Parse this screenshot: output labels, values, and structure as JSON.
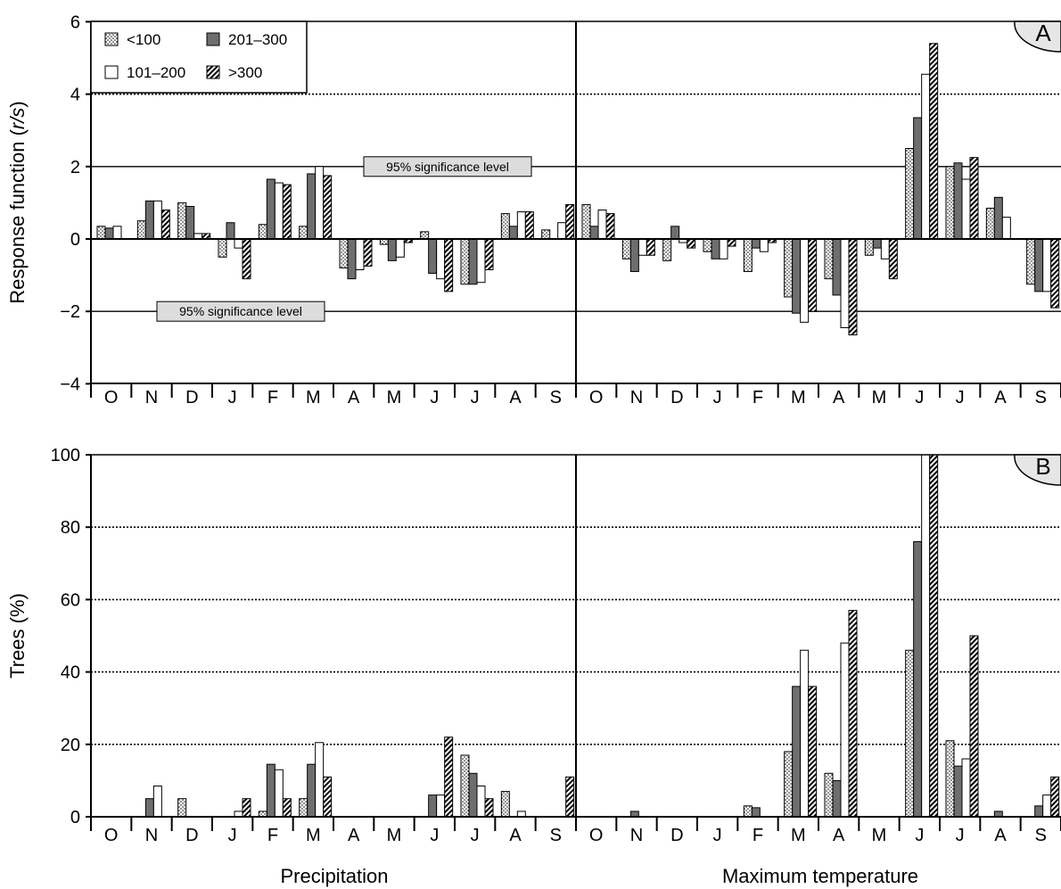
{
  "legend": [
    {
      "label": "<100",
      "pattern": "dots"
    },
    {
      "label": "201–300",
      "pattern": "dark"
    },
    {
      "label": "101–200",
      "pattern": "white"
    },
    {
      "label": ">300",
      "pattern": "hatch"
    }
  ],
  "section_labels": [
    "Precipitation",
    "Maximum temperature"
  ],
  "colors": {
    "dark": "#6e6e6e",
    "line": "#000000",
    "sig_box": "#dcdcdc"
  },
  "chart_data": [
    {
      "type": "bar",
      "panel_label": "A",
      "ylabel": "Response function (r/s)",
      "ylabel_parts": [
        "Response function (",
        "r/s",
        ")"
      ],
      "ylim": [
        -4,
        6
      ],
      "yticks": [
        -4,
        -2,
        0,
        2,
        4,
        6
      ],
      "ytick_labels": [
        "−4",
        "−2",
        "0",
        "2",
        "4",
        "6"
      ],
      "gridlines": [
        {
          "y": 4,
          "style": "dotted"
        },
        {
          "y": 2,
          "style": "solid"
        },
        {
          "y": -2,
          "style": "solid"
        }
      ],
      "annotations": [
        {
          "text": "95% significance level",
          "y": 2
        },
        {
          "text": "95% significance level",
          "y": -2
        }
      ],
      "categories": [
        "O",
        "N",
        "D",
        "J",
        "F",
        "M",
        "A",
        "M",
        "J",
        "J",
        "A",
        "S",
        "O",
        "N",
        "D",
        "J",
        "F",
        "M",
        "A",
        "M",
        "J",
        "J",
        "A",
        "S"
      ],
      "series": [
        {
          "name": "<100",
          "values": [
            0.35,
            0.5,
            1.0,
            -0.5,
            0.4,
            0.35,
            -0.8,
            -0.15,
            0.2,
            -1.25,
            0.7,
            0.25,
            0.95,
            -0.55,
            -0.6,
            -0.35,
            -0.9,
            -1.6,
            -1.1,
            -0.45,
            2.5,
            2.0,
            0.85,
            -1.25
          ]
        },
        {
          "name": "101–200",
          "values": [
            0.3,
            1.05,
            0.9,
            0.45,
            1.65,
            1.8,
            -1.1,
            -0.6,
            -0.95,
            -1.25,
            0.35,
            0.0,
            0.35,
            -0.9,
            0.35,
            -0.55,
            -0.25,
            -2.05,
            -1.55,
            -0.25,
            3.35,
            2.1,
            1.15,
            -1.45
          ]
        },
        {
          "name": "201–300",
          "values": [
            0.35,
            1.05,
            0.15,
            -0.25,
            1.55,
            2.0,
            -0.85,
            -0.5,
            -1.1,
            -1.2,
            0.75,
            0.45,
            0.8,
            -0.45,
            -0.1,
            -0.55,
            -0.35,
            -2.3,
            -2.45,
            -0.55,
            4.55,
            1.65,
            0.6,
            -1.45
          ]
        },
        {
          "name": ">300",
          "values": [
            0.0,
            0.8,
            0.15,
            -1.1,
            1.5,
            1.75,
            -0.75,
            -0.1,
            -1.45,
            -0.85,
            0.75,
            0.95,
            0.7,
            -0.45,
            -0.25,
            -0.2,
            -0.1,
            -2.0,
            -2.65,
            -1.1,
            5.4,
            2.25,
            0.0,
            -1.9
          ]
        }
      ]
    },
    {
      "type": "bar",
      "panel_label": "B",
      "ylabel": "Trees (%)",
      "ylim": [
        0,
        100
      ],
      "yticks": [
        0,
        20,
        40,
        60,
        80,
        100
      ],
      "ytick_labels": [
        "0",
        "20",
        "40",
        "60",
        "80",
        "100"
      ],
      "gridlines": [
        {
          "y": 20,
          "style": "dotted"
        },
        {
          "y": 40,
          "style": "dotted"
        },
        {
          "y": 60,
          "style": "dotted"
        },
        {
          "y": 80,
          "style": "dotted"
        }
      ],
      "categories": [
        "O",
        "N",
        "D",
        "J",
        "F",
        "M",
        "A",
        "M",
        "J",
        "J",
        "A",
        "S",
        "O",
        "N",
        "D",
        "J",
        "F",
        "M",
        "A",
        "M",
        "J",
        "J",
        "A",
        "S"
      ],
      "series": [
        {
          "name": "<100",
          "values": [
            0,
            0,
            5,
            0,
            1.5,
            5,
            0,
            0,
            0,
            17,
            7,
            0,
            0,
            0,
            0,
            0,
            3,
            18,
            12,
            0,
            46,
            21,
            0,
            0
          ]
        },
        {
          "name": "101–200",
          "values": [
            0,
            5,
            0,
            0,
            14.5,
            14.5,
            0,
            0,
            6,
            12,
            0,
            0,
            0,
            1.5,
            0,
            0,
            2.5,
            36,
            10,
            0,
            76,
            14,
            1.5,
            3
          ]
        },
        {
          "name": "201–300",
          "values": [
            0,
            8.5,
            0,
            1.5,
            13,
            20.5,
            0,
            0,
            6,
            8.5,
            1.5,
            0,
            0,
            0,
            0,
            0,
            0,
            46,
            48,
            0,
            100,
            16,
            0,
            6
          ]
        },
        {
          "name": ">300",
          "values": [
            0,
            0,
            0,
            5,
            5,
            11,
            0,
            0,
            22,
            5,
            0,
            11,
            0,
            0,
            0,
            0,
            0,
            36,
            57,
            0,
            100,
            50,
            0,
            11
          ]
        }
      ]
    }
  ]
}
